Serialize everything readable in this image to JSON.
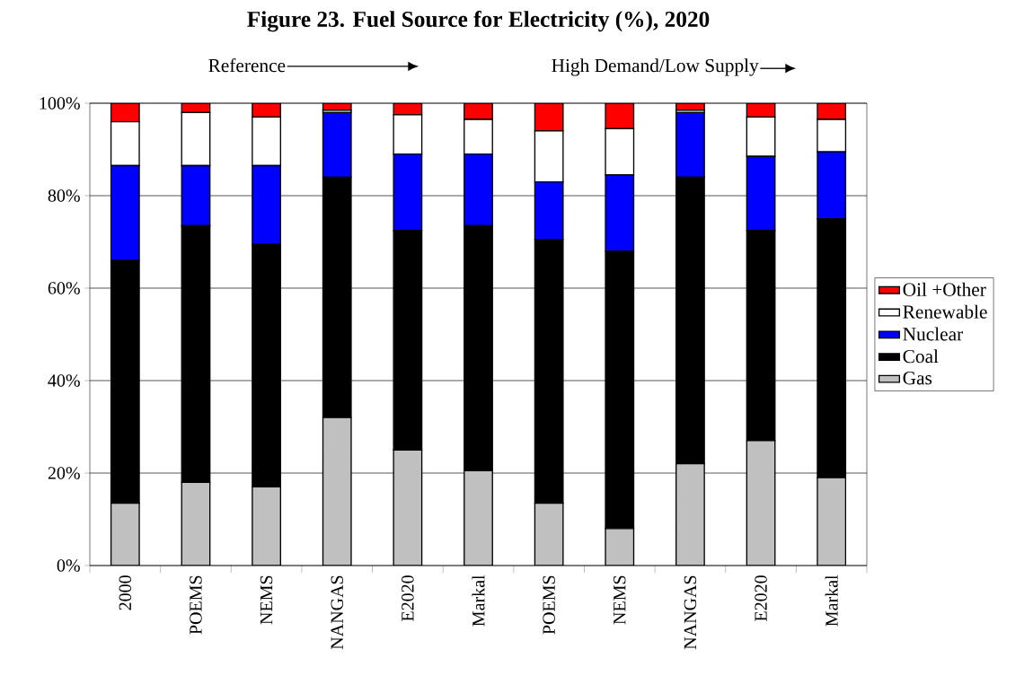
{
  "chart_data": {
    "type": "bar",
    "stacked": true,
    "title": "Figure 23.  Fuel Source for Electricity (%), 2020",
    "categories": [
      "2000",
      "POEMS",
      "NEMS",
      "NANGAS",
      "E2020",
      "Markal",
      "POEMS",
      "NEMS",
      "NANGAS",
      "E2020",
      "Markal"
    ],
    "series": [
      {
        "name": "Gas",
        "color": "#c0c0c0",
        "values": [
          13.5,
          18,
          17,
          32,
          25,
          20.5,
          13.5,
          8,
          22,
          27,
          19
        ]
      },
      {
        "name": "Coal",
        "color": "#000000",
        "values": [
          52.5,
          55.5,
          52.5,
          52,
          47.5,
          53,
          57,
          60,
          62,
          45.5,
          56
        ]
      },
      {
        "name": "Nuclear",
        "color": "#0000ff",
        "values": [
          20.5,
          13,
          17,
          14,
          16.5,
          15.5,
          12.5,
          16.5,
          14,
          16,
          14.5
        ]
      },
      {
        "name": "Renewable",
        "color": "#ffffff",
        "values": [
          9.5,
          11.5,
          10.5,
          0.5,
          8.5,
          7.5,
          11,
          10,
          0.5,
          8.5,
          7
        ]
      },
      {
        "name": "Oil +Other",
        "color": "#ff0000",
        "values": [
          4,
          2,
          3,
          1.5,
          2.5,
          3.5,
          6,
          5.5,
          1.5,
          3,
          3.5
        ]
      }
    ],
    "ylim": [
      0,
      100
    ],
    "yticks": [
      {
        "value": 0,
        "label": "0%"
      },
      {
        "value": 20,
        "label": "20%"
      },
      {
        "value": 40,
        "label": "40%"
      },
      {
        "value": 60,
        "label": "60%"
      },
      {
        "value": 80,
        "label": "80%"
      },
      {
        "value": 100,
        "label": "100%"
      }
    ],
    "grid": "y",
    "legend": "right",
    "annotations": [
      "Reference",
      "High Demand/Low Supply"
    ]
  }
}
